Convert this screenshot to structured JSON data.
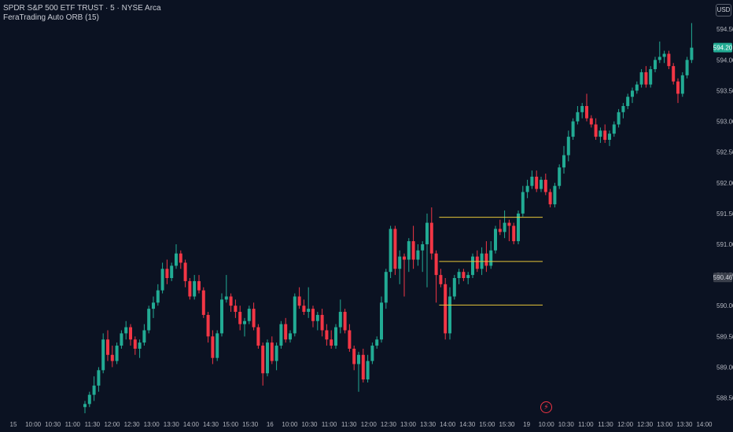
{
  "header": {
    "symbol_line": "SPDR S&P 500 ETF TRUST · 5 · NYSE Arca",
    "indicator_line": "FeraTrading Auto ORB (15)",
    "currency_button": "USD"
  },
  "colors": {
    "background": "#0b1222",
    "up": "#22ab94",
    "down": "#f23645",
    "orb_line": "#e9c73a",
    "axis_text": "#b2b5be",
    "last_price_bg": "#22ab94"
  },
  "icons": {
    "session_break": "lightning-icon"
  },
  "chart_data": {
    "type": "candlestick",
    "y_axis": {
      "ticks": [
        588.5,
        589.0,
        589.5,
        590.0,
        590.5,
        591.0,
        591.5,
        592.0,
        592.5,
        593.0,
        593.5,
        594.0,
        594.5
      ],
      "tick_labels": [
        "588.50",
        "589.00",
        "589.50",
        "590.00",
        "590.50",
        "591.00",
        "591.50",
        "592.00",
        "592.50",
        "593.00",
        "593.50",
        "594.00",
        "594.50"
      ],
      "ylim": [
        588.2,
        594.72
      ]
    },
    "x_axis": {
      "tick_labels": [
        "15",
        "10:00",
        "10:30",
        "11:00",
        "11:30",
        "12:00",
        "12:30",
        "13:00",
        "13:30",
        "14:00",
        "14:30",
        "15:00",
        "15:30",
        "16",
        "10:00",
        "10:30",
        "11:00",
        "11:30",
        "12:00",
        "12:30",
        "13:00",
        "13:30",
        "14:00",
        "14:30",
        "15:00",
        "15:30",
        "19",
        "10:00",
        "10:30",
        "11:00",
        "11:30",
        "12:00",
        "12:30",
        "13:00",
        "13:30",
        "14:00"
      ],
      "xlim": [
        0,
        154
      ]
    },
    "price_badges": [
      {
        "label": "594.20",
        "value": 594.2,
        "style": "last"
      },
      {
        "label": "590.46",
        "value": 590.46,
        "style": "marker"
      }
    ],
    "orb_levels": [
      {
        "name": "orb-high",
        "value": 591.44,
        "x_start": 78,
        "x_end": 154
      },
      {
        "name": "orb-mid",
        "value": 590.72,
        "x_start": 78,
        "x_end": 154
      },
      {
        "name": "orb-low",
        "value": 590.01,
        "x_start": 78,
        "x_end": 154
      }
    ],
    "candles": [
      {
        "o": 588.35,
        "h": 588.45,
        "l": 588.25,
        "c": 588.4
      },
      {
        "o": 588.4,
        "h": 588.6,
        "l": 588.35,
        "c": 588.55
      },
      {
        "o": 588.55,
        "h": 588.85,
        "l": 588.45,
        "c": 588.7
      },
      {
        "o": 588.7,
        "h": 589.0,
        "l": 588.6,
        "c": 588.95
      },
      {
        "o": 588.95,
        "h": 589.55,
        "l": 588.9,
        "c": 589.45
      },
      {
        "o": 589.45,
        "h": 589.6,
        "l": 589.1,
        "c": 589.2
      },
      {
        "o": 589.2,
        "h": 589.35,
        "l": 589.0,
        "c": 589.1
      },
      {
        "o": 589.1,
        "h": 589.4,
        "l": 589.05,
        "c": 589.35
      },
      {
        "o": 589.35,
        "h": 589.6,
        "l": 589.3,
        "c": 589.55
      },
      {
        "o": 589.55,
        "h": 589.75,
        "l": 589.45,
        "c": 589.65
      },
      {
        "o": 589.65,
        "h": 589.7,
        "l": 589.35,
        "c": 589.45
      },
      {
        "o": 589.45,
        "h": 589.5,
        "l": 589.2,
        "c": 589.3
      },
      {
        "o": 589.3,
        "h": 589.45,
        "l": 589.15,
        "c": 589.4
      },
      {
        "o": 589.4,
        "h": 589.7,
        "l": 589.35,
        "c": 589.6
      },
      {
        "o": 589.6,
        "h": 590.0,
        "l": 589.55,
        "c": 589.95
      },
      {
        "o": 589.95,
        "h": 590.15,
        "l": 589.8,
        "c": 590.05
      },
      {
        "o": 590.05,
        "h": 590.35,
        "l": 590.0,
        "c": 590.25
      },
      {
        "o": 590.25,
        "h": 590.7,
        "l": 590.2,
        "c": 590.6
      },
      {
        "o": 590.6,
        "h": 590.75,
        "l": 590.35,
        "c": 590.45
      },
      {
        "o": 590.45,
        "h": 590.7,
        "l": 590.4,
        "c": 590.65
      },
      {
        "o": 590.65,
        "h": 591.0,
        "l": 590.6,
        "c": 590.85
      },
      {
        "o": 590.85,
        "h": 590.9,
        "l": 590.6,
        "c": 590.7
      },
      {
        "o": 590.7,
        "h": 590.75,
        "l": 590.3,
        "c": 590.4
      },
      {
        "o": 590.4,
        "h": 590.45,
        "l": 590.1,
        "c": 590.15
      },
      {
        "o": 590.15,
        "h": 590.5,
        "l": 590.1,
        "c": 590.4
      },
      {
        "o": 590.4,
        "h": 590.5,
        "l": 590.2,
        "c": 590.25
      },
      {
        "o": 590.25,
        "h": 590.3,
        "l": 589.8,
        "c": 589.85
      },
      {
        "o": 589.85,
        "h": 589.9,
        "l": 589.4,
        "c": 589.5
      },
      {
        "o": 589.5,
        "h": 589.6,
        "l": 589.05,
        "c": 589.15
      },
      {
        "o": 589.15,
        "h": 589.6,
        "l": 589.1,
        "c": 589.55
      },
      {
        "o": 589.55,
        "h": 590.2,
        "l": 589.5,
        "c": 590.1
      },
      {
        "o": 590.1,
        "h": 590.5,
        "l": 590.05,
        "c": 590.15
      },
      {
        "o": 590.15,
        "h": 590.2,
        "l": 589.9,
        "c": 590.0
      },
      {
        "o": 590.0,
        "h": 590.1,
        "l": 589.8,
        "c": 589.9
      },
      {
        "o": 589.9,
        "h": 590.0,
        "l": 589.6,
        "c": 589.7
      },
      {
        "o": 589.7,
        "h": 589.8,
        "l": 589.5,
        "c": 589.75
      },
      {
        "o": 589.75,
        "h": 590.0,
        "l": 589.7,
        "c": 589.95
      },
      {
        "o": 589.95,
        "h": 590.05,
        "l": 589.6,
        "c": 589.65
      },
      {
        "o": 589.65,
        "h": 589.7,
        "l": 589.3,
        "c": 589.35
      },
      {
        "o": 589.35,
        "h": 589.4,
        "l": 588.7,
        "c": 588.9
      },
      {
        "o": 588.9,
        "h": 589.45,
        "l": 588.85,
        "c": 589.4
      },
      {
        "o": 589.4,
        "h": 589.5,
        "l": 589.05,
        "c": 589.1
      },
      {
        "o": 589.1,
        "h": 589.4,
        "l": 588.95,
        "c": 589.35
      },
      {
        "o": 589.35,
        "h": 589.75,
        "l": 589.3,
        "c": 589.7
      },
      {
        "o": 589.7,
        "h": 589.8,
        "l": 589.4,
        "c": 589.45
      },
      {
        "o": 589.45,
        "h": 589.6,
        "l": 589.4,
        "c": 589.55
      },
      {
        "o": 589.55,
        "h": 590.2,
        "l": 589.5,
        "c": 590.15
      },
      {
        "o": 590.15,
        "h": 590.3,
        "l": 589.95,
        "c": 590.0
      },
      {
        "o": 590.0,
        "h": 590.1,
        "l": 589.85,
        "c": 589.9
      },
      {
        "o": 589.9,
        "h": 590.3,
        "l": 589.8,
        "c": 589.95
      },
      {
        "o": 589.95,
        "h": 590.0,
        "l": 589.65,
        "c": 589.75
      },
      {
        "o": 589.75,
        "h": 589.9,
        "l": 589.6,
        "c": 589.85
      },
      {
        "o": 589.85,
        "h": 589.95,
        "l": 589.5,
        "c": 589.6
      },
      {
        "o": 589.6,
        "h": 589.7,
        "l": 589.35,
        "c": 589.45
      },
      {
        "o": 589.45,
        "h": 589.6,
        "l": 589.3,
        "c": 589.35
      },
      {
        "o": 589.35,
        "h": 589.7,
        "l": 589.3,
        "c": 589.65
      },
      {
        "o": 589.65,
        "h": 590.1,
        "l": 589.55,
        "c": 589.9
      },
      {
        "o": 589.9,
        "h": 589.95,
        "l": 589.55,
        "c": 589.6
      },
      {
        "o": 589.6,
        "h": 589.7,
        "l": 589.25,
        "c": 589.3
      },
      {
        "o": 589.3,
        "h": 589.35,
        "l": 588.95,
        "c": 589.05
      },
      {
        "o": 589.05,
        "h": 589.25,
        "l": 588.6,
        "c": 589.2
      },
      {
        "o": 589.2,
        "h": 589.3,
        "l": 588.75,
        "c": 588.8
      },
      {
        "o": 588.8,
        "h": 589.2,
        "l": 588.75,
        "c": 589.1
      },
      {
        "o": 589.1,
        "h": 589.4,
        "l": 589.05,
        "c": 589.35
      },
      {
        "o": 589.35,
        "h": 589.5,
        "l": 589.3,
        "c": 589.45
      },
      {
        "o": 589.45,
        "h": 590.15,
        "l": 589.4,
        "c": 590.05
      },
      {
        "o": 590.05,
        "h": 590.6,
        "l": 589.95,
        "c": 590.55
      },
      {
        "o": 590.55,
        "h": 591.3,
        "l": 590.45,
        "c": 591.25
      },
      {
        "o": 591.25,
        "h": 591.3,
        "l": 590.5,
        "c": 590.6
      },
      {
        "o": 590.6,
        "h": 590.9,
        "l": 590.35,
        "c": 590.8
      },
      {
        "o": 590.8,
        "h": 590.85,
        "l": 590.15,
        "c": 590.75
      },
      {
        "o": 590.75,
        "h": 591.1,
        "l": 590.55,
        "c": 591.05
      },
      {
        "o": 591.05,
        "h": 591.3,
        "l": 590.6,
        "c": 590.75
      },
      {
        "o": 590.75,
        "h": 591.0,
        "l": 590.65,
        "c": 590.9
      },
      {
        "o": 590.9,
        "h": 591.05,
        "l": 590.55,
        "c": 591.0
      },
      {
        "o": 591.0,
        "h": 591.5,
        "l": 590.3,
        "c": 591.35
      },
      {
        "o": 591.35,
        "h": 591.6,
        "l": 590.75,
        "c": 590.85
      },
      {
        "o": 590.85,
        "h": 590.9,
        "l": 590.05,
        "c": 590.5
      },
      {
        "o": 590.5,
        "h": 590.6,
        "l": 590.3,
        "c": 590.35
      },
      {
        "o": 590.35,
        "h": 590.45,
        "l": 589.45,
        "c": 589.55
      },
      {
        "o": 589.55,
        "h": 590.3,
        "l": 589.45,
        "c": 590.15
      },
      {
        "o": 590.15,
        "h": 590.5,
        "l": 590.1,
        "c": 590.45
      },
      {
        "o": 590.45,
        "h": 590.6,
        "l": 590.35,
        "c": 590.55
      },
      {
        "o": 590.55,
        "h": 590.6,
        "l": 590.4,
        "c": 590.45
      },
      {
        "o": 590.45,
        "h": 590.55,
        "l": 590.35,
        "c": 590.5
      },
      {
        "o": 590.5,
        "h": 590.85,
        "l": 590.45,
        "c": 590.8
      },
      {
        "o": 590.8,
        "h": 590.9,
        "l": 590.55,
        "c": 590.6
      },
      {
        "o": 590.6,
        "h": 590.95,
        "l": 590.5,
        "c": 590.85
      },
      {
        "o": 590.85,
        "h": 591.05,
        "l": 590.55,
        "c": 590.65
      },
      {
        "o": 590.65,
        "h": 591.05,
        "l": 590.6,
        "c": 590.9
      },
      {
        "o": 590.9,
        "h": 591.3,
        "l": 590.85,
        "c": 591.25
      },
      {
        "o": 591.25,
        "h": 591.4,
        "l": 591.15,
        "c": 591.2
      },
      {
        "o": 591.2,
        "h": 591.55,
        "l": 591.1,
        "c": 591.35
      },
      {
        "o": 591.35,
        "h": 591.4,
        "l": 591.05,
        "c": 591.3
      },
      {
        "o": 591.3,
        "h": 591.35,
        "l": 591.0,
        "c": 591.05
      },
      {
        "o": 591.05,
        "h": 591.55,
        "l": 591.0,
        "c": 591.5
      },
      {
        "o": 591.5,
        "h": 591.95,
        "l": 591.45,
        "c": 591.85
      },
      {
        "o": 591.85,
        "h": 592.05,
        "l": 591.75,
        "c": 591.95
      },
      {
        "o": 591.95,
        "h": 592.2,
        "l": 591.9,
        "c": 592.1
      },
      {
        "o": 592.1,
        "h": 592.2,
        "l": 591.85,
        "c": 591.9
      },
      {
        "o": 591.9,
        "h": 592.1,
        "l": 591.85,
        "c": 592.05
      },
      {
        "o": 592.05,
        "h": 592.15,
        "l": 591.8,
        "c": 591.85
      },
      {
        "o": 591.85,
        "h": 591.9,
        "l": 591.6,
        "c": 591.65
      },
      {
        "o": 591.65,
        "h": 592.0,
        "l": 591.6,
        "c": 591.95
      },
      {
        "o": 591.95,
        "h": 592.3,
        "l": 591.9,
        "c": 592.25
      },
      {
        "o": 592.25,
        "h": 592.6,
        "l": 592.15,
        "c": 592.45
      },
      {
        "o": 592.45,
        "h": 592.85,
        "l": 592.35,
        "c": 592.75
      },
      {
        "o": 592.75,
        "h": 593.05,
        "l": 592.7,
        "c": 593.0
      },
      {
        "o": 593.0,
        "h": 593.25,
        "l": 592.95,
        "c": 593.15
      },
      {
        "o": 593.15,
        "h": 593.3,
        "l": 593.05,
        "c": 593.25
      },
      {
        "o": 593.25,
        "h": 593.45,
        "l": 593.0,
        "c": 593.05
      },
      {
        "o": 593.05,
        "h": 593.1,
        "l": 592.9,
        "c": 592.95
      },
      {
        "o": 592.95,
        "h": 593.05,
        "l": 592.7,
        "c": 592.75
      },
      {
        "o": 592.75,
        "h": 592.9,
        "l": 592.65,
        "c": 592.85
      },
      {
        "o": 592.85,
        "h": 592.95,
        "l": 592.65,
        "c": 592.7
      },
      {
        "o": 592.7,
        "h": 592.85,
        "l": 592.6,
        "c": 592.8
      },
      {
        "o": 592.8,
        "h": 593.0,
        "l": 592.75,
        "c": 592.95
      },
      {
        "o": 592.95,
        "h": 593.2,
        "l": 592.9,
        "c": 593.15
      },
      {
        "o": 593.15,
        "h": 593.3,
        "l": 593.05,
        "c": 593.25
      },
      {
        "o": 593.25,
        "h": 593.45,
        "l": 593.2,
        "c": 593.4
      },
      {
        "o": 593.4,
        "h": 593.55,
        "l": 593.3,
        "c": 593.5
      },
      {
        "o": 593.5,
        "h": 593.65,
        "l": 593.45,
        "c": 593.6
      },
      {
        "o": 593.6,
        "h": 593.85,
        "l": 593.55,
        "c": 593.8
      },
      {
        "o": 593.8,
        "h": 593.9,
        "l": 593.55,
        "c": 593.6
      },
      {
        "o": 593.6,
        "h": 593.9,
        "l": 593.55,
        "c": 593.85
      },
      {
        "o": 593.85,
        "h": 594.05,
        "l": 593.8,
        "c": 594.0
      },
      {
        "o": 594.0,
        "h": 594.3,
        "l": 593.95,
        "c": 594.05
      },
      {
        "o": 594.05,
        "h": 594.15,
        "l": 593.95,
        "c": 594.1
      },
      {
        "o": 594.1,
        "h": 594.15,
        "l": 593.85,
        "c": 593.9
      },
      {
        "o": 593.9,
        "h": 593.95,
        "l": 593.6,
        "c": 593.65
      },
      {
        "o": 593.65,
        "h": 593.7,
        "l": 593.3,
        "c": 593.45
      },
      {
        "o": 593.45,
        "h": 593.8,
        "l": 593.4,
        "c": 593.75
      },
      {
        "o": 593.75,
        "h": 594.05,
        "l": 593.7,
        "c": 594.0
      },
      {
        "o": 594.0,
        "h": 594.6,
        "l": 593.95,
        "c": 594.2
      }
    ]
  }
}
